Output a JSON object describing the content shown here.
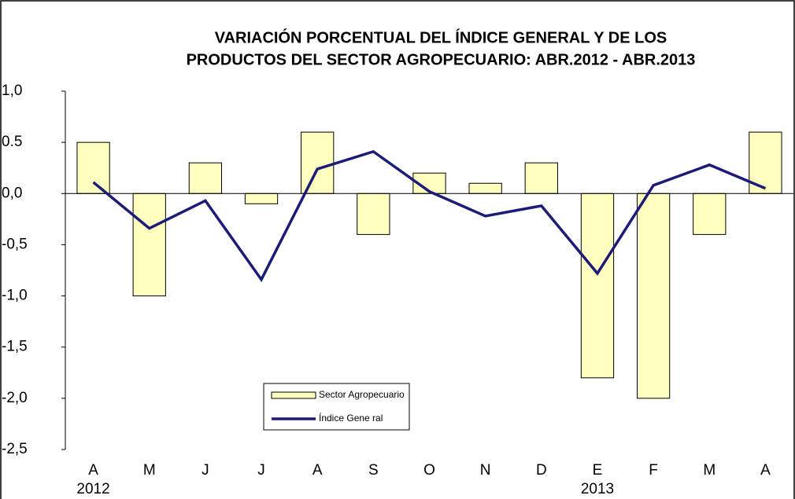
{
  "chart_data": {
    "type": "bar-line",
    "title": [
      "VARIACIÓN  PORCENTUAL DEL ÍNDICE GENERAL Y DE LOS",
      "PRODUCTOS DEL SECTOR AGROPECUARIO: ABR.2012 - ABR.2013"
    ],
    "categories": [
      "A",
      "M",
      "J",
      "J",
      "A",
      "S",
      "O",
      "N",
      "D",
      "E",
      "F",
      "M",
      "A"
    ],
    "category_years": [
      "2012",
      null,
      null,
      null,
      null,
      null,
      null,
      null,
      null,
      "2013",
      null,
      null,
      null
    ],
    "series": [
      {
        "name": "Sector Agropecuario",
        "type": "bar",
        "color": "#ffffc0",
        "values": [
          0.5,
          -1.0,
          0.3,
          -0.1,
          0.6,
          -0.4,
          0.2,
          0.1,
          0.3,
          -1.8,
          -2.0,
          -0.4,
          0.6
        ]
      },
      {
        "name": "Índice Gene ral",
        "type": "line",
        "color": "#1c1c78",
        "values": [
          0.11,
          -0.34,
          -0.07,
          -0.84,
          0.24,
          0.41,
          0.02,
          -0.22,
          -0.12,
          -0.78,
          0.08,
          0.28,
          0.05
        ]
      }
    ],
    "ylim": [
      -2.5,
      1.0
    ],
    "yticks": [
      {
        "value": 1.0,
        "label": "1,0"
      },
      {
        "value": 0.5,
        "label": "0.5"
      },
      {
        "value": 0,
        "label": "0,0"
      },
      {
        "value": -0.5,
        "label": "-0,5"
      },
      {
        "value": -1.0,
        "label": "-1,0"
      },
      {
        "value": -1.5,
        "label": "-1,5"
      },
      {
        "value": -2.0,
        "label": "-2,0"
      },
      {
        "value": -2.5,
        "label": "-2,5"
      }
    ]
  }
}
